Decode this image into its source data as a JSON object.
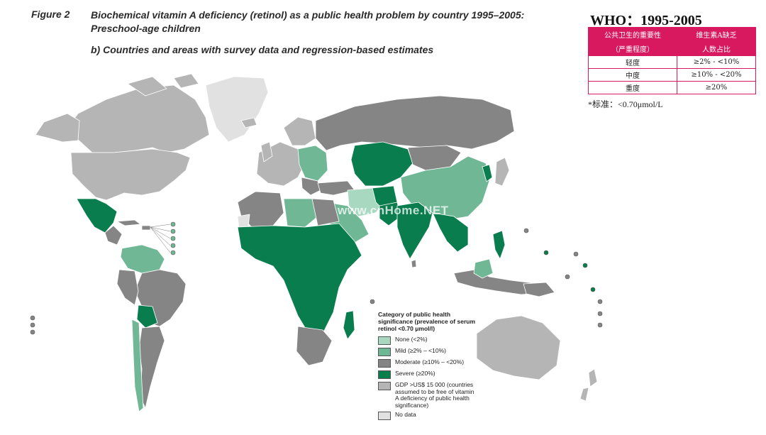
{
  "header": {
    "figure_label": "Figure 2",
    "title": "Biochemical vitamin A deficiency (retinol) as a public health problem by country 1995–2005: Preschool-age children",
    "subtitle": "b) Countries and areas with survey data and regression-based estimates"
  },
  "who_panel": {
    "title": "WHO：1995-2005",
    "col1_header_line1": "公共卫生的重要性",
    "col1_header_line2": "（严重程度）",
    "col2_header_line1": "维生素A缺乏",
    "col2_header_line2": "人数占比",
    "rows": [
      {
        "level": "轻度",
        "range": "≥2% - <10%"
      },
      {
        "level": "中度",
        "range": "≥10% - <20%"
      },
      {
        "level": "重度",
        "range": "≥20%"
      }
    ],
    "note": "*标准：<0.70μmol/L"
  },
  "legend": {
    "title": "Category of public health significance (prevalence of serum retinol <0.70 μmol/l)",
    "items": [
      {
        "label": "None (<2%)",
        "color": "#a8d8c0"
      },
      {
        "label": "Mild (≥2% – <10%)",
        "color": "#6fb795"
      },
      {
        "label": "Moderate (≥10% – <20%)",
        "color": "#858585"
      },
      {
        "label": "Severe (≥20%)",
        "color": "#0a7d4f"
      },
      {
        "label": "GDP >US$ 15 000 (countries assumed to be free of vitamin A deficiency of public health significance)",
        "color": "#b5b5b5"
      },
      {
        "label": "No data",
        "color": "#e1e1e1"
      }
    ]
  },
  "watermark": "www.cnHome.NET",
  "colors": {
    "none": "#a8d8c0",
    "mild": "#6fb795",
    "moderate": "#858585",
    "severe": "#0a7d4f",
    "gdp_high": "#b5b5b5",
    "no_data": "#e1e1e1",
    "table_accent": "#d8185f"
  }
}
